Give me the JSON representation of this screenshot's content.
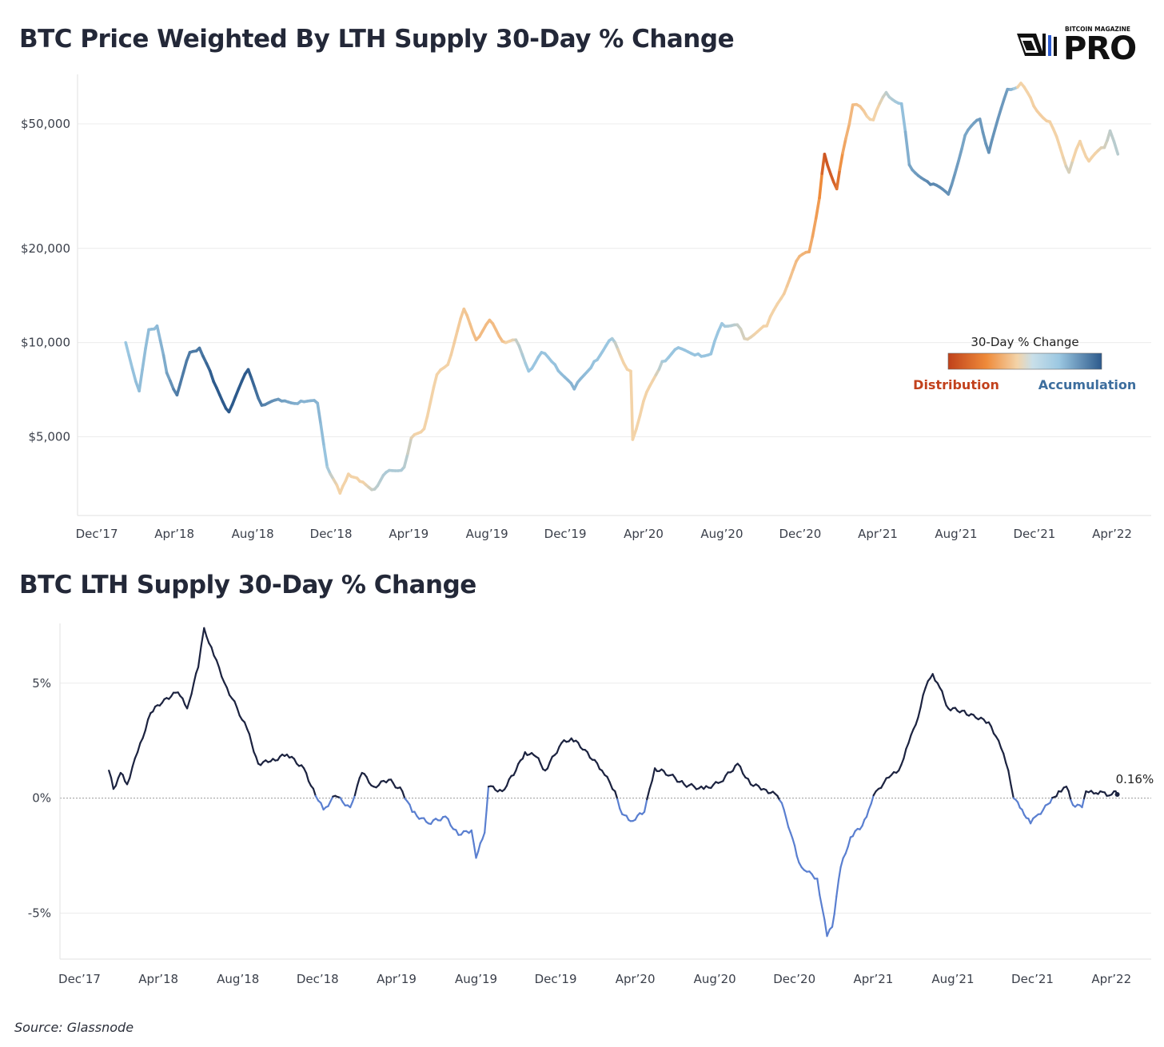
{
  "brand": {
    "top_line": "BITCOIN MAGAZINE",
    "main": "PRO"
  },
  "source": "Source: Glassnode",
  "colors": {
    "distribution_dark": "#c0411a",
    "distribution_mid": "#ef8b3a",
    "neutral_light": "#f3d3a8",
    "accumulation_light": "#9cc8e2",
    "accumulation_dark": "#2d5a8c",
    "lth_positive": "#1c2340",
    "lth_negative": "#5a7fd0",
    "title": "#232838"
  },
  "chart_data": [
    {
      "type": "line",
      "title": "BTC Price Weighted By LTH Supply 30-Day % Change",
      "xlabel": "",
      "ylabel": "",
      "y_scale": "log",
      "ylim": [
        2800,
        72000
      ],
      "y_ticks": [
        5000,
        10000,
        20000,
        50000
      ],
      "y_tick_labels": [
        "$5,000",
        "$10,000",
        "$20,000",
        "$50,000"
      ],
      "x_range": [
        "2017-11-01",
        "2022-06-01"
      ],
      "x_ticks": [
        "2017-12-01",
        "2018-04-01",
        "2018-08-01",
        "2018-12-01",
        "2019-04-01",
        "2019-08-01",
        "2019-12-01",
        "2020-04-01",
        "2020-08-01",
        "2020-12-01",
        "2021-04-01",
        "2021-08-01",
        "2021-12-01",
        "2022-04-01"
      ],
      "x_tick_labels": [
        "Dec’17",
        "Apr’18",
        "Aug’18",
        "Dec’18",
        "Apr’19",
        "Aug’19",
        "Dec’19",
        "Apr’20",
        "Aug’20",
        "Dec’20",
        "Apr’21",
        "Aug’21",
        "Dec’21",
        "Apr’22"
      ],
      "color_by": "lth_30d_change",
      "legend": {
        "title": "30-Day % Change",
        "left_label": "Distribution",
        "right_label": "Accumulation",
        "placement": "right-middle"
      },
      "grid": true,
      "points": [
        [
          "2018-01-15",
          10000,
          -1.0
        ],
        [
          "2018-02-05",
          7000,
          -1.5
        ],
        [
          "2018-02-20",
          11000,
          -1.5
        ],
        [
          "2018-03-05",
          11300,
          -1.5
        ],
        [
          "2018-03-20",
          8000,
          -2.5
        ],
        [
          "2018-04-05",
          6800,
          -4.5
        ],
        [
          "2018-04-25",
          9300,
          -4.5
        ],
        [
          "2018-05-10",
          9600,
          -4.5
        ],
        [
          "2018-06-01",
          7500,
          -6.0
        ],
        [
          "2018-06-25",
          6000,
          -6.5
        ],
        [
          "2018-07-25",
          8200,
          -6.0
        ],
        [
          "2018-08-15",
          6300,
          -4.5
        ],
        [
          "2018-09-15",
          6500,
          -3.0
        ],
        [
          "2018-10-15",
          6500,
          -2.0
        ],
        [
          "2018-11-10",
          6400,
          -2.0
        ],
        [
          "2018-11-25",
          4000,
          -1.0
        ],
        [
          "2018-12-15",
          3300,
          0.3
        ],
        [
          "2018-12-28",
          3800,
          0.3
        ],
        [
          "2019-01-15",
          3600,
          0.3
        ],
        [
          "2019-02-07",
          3400,
          -0.6
        ],
        [
          "2019-02-25",
          3850,
          -0.8
        ],
        [
          "2019-03-25",
          4000,
          -0.8
        ],
        [
          "2019-04-05",
          4950,
          -0.3
        ],
        [
          "2019-04-25",
          5300,
          0.9
        ],
        [
          "2019-05-15",
          7900,
          1.0
        ],
        [
          "2019-06-01",
          8500,
          1.0
        ],
        [
          "2019-06-26",
          12800,
          1.5
        ],
        [
          "2019-07-15",
          10200,
          2.0
        ],
        [
          "2019-08-05",
          11800,
          2.0
        ],
        [
          "2019-08-25",
          10100,
          2.0
        ],
        [
          "2019-09-15",
          10200,
          -0.5
        ],
        [
          "2019-10-05",
          8100,
          -1.0
        ],
        [
          "2019-10-25",
          9300,
          -1.2
        ],
        [
          "2019-11-15",
          8500,
          -1.2
        ],
        [
          "2019-12-15",
          7100,
          -2.0
        ],
        [
          "2020-01-15",
          8700,
          -1.2
        ],
        [
          "2020-02-12",
          10300,
          -1.0
        ],
        [
          "2020-03-01",
          8600,
          0.3
        ],
        [
          "2020-03-12",
          8100,
          0.3
        ],
        [
          "2020-03-15",
          4900,
          0.8
        ],
        [
          "2020-04-01",
          6500,
          1.0
        ],
        [
          "2020-04-30",
          8700,
          -0.8
        ],
        [
          "2020-05-20",
          9500,
          -1.2
        ],
        [
          "2020-06-25",
          9200,
          -1.2
        ],
        [
          "2020-07-15",
          9200,
          -1.2
        ],
        [
          "2020-08-01",
          11500,
          -1.0
        ],
        [
          "2020-08-25",
          11400,
          -0.6
        ],
        [
          "2020-09-05",
          10300,
          -0.3
        ],
        [
          "2020-10-10",
          11300,
          0.2
        ],
        [
          "2020-11-01",
          13800,
          1.0
        ],
        [
          "2020-11-25",
          18200,
          2.0
        ],
        [
          "2020-12-15",
          19500,
          2.5
        ],
        [
          "2020-12-31",
          29000,
          3.5
        ],
        [
          "2021-01-08",
          40000,
          5.5
        ],
        [
          "2021-01-27",
          31000,
          5.0
        ],
        [
          "2021-02-10",
          44800,
          2.5
        ],
        [
          "2021-02-21",
          57500,
          2.0
        ],
        [
          "2021-03-10",
          55000,
          1.5
        ],
        [
          "2021-03-25",
          51500,
          0.4
        ],
        [
          "2021-04-14",
          63000,
          -0.6
        ],
        [
          "2021-05-08",
          58000,
          -1.0
        ],
        [
          "2021-05-20",
          37000,
          -2.5
        ],
        [
          "2021-06-22",
          32000,
          -4.0
        ],
        [
          "2021-07-20",
          29800,
          -3.5
        ],
        [
          "2021-08-15",
          46000,
          -2.5
        ],
        [
          "2021-09-07",
          51800,
          -3.0
        ],
        [
          "2021-09-21",
          40500,
          -3.5
        ],
        [
          "2021-10-20",
          64500,
          -3.0
        ],
        [
          "2021-11-10",
          67500,
          0.4
        ],
        [
          "2021-11-30",
          57000,
          1.2
        ],
        [
          "2021-12-25",
          50800,
          1.2
        ],
        [
          "2022-01-10",
          42000,
          0.3
        ],
        [
          "2022-01-24",
          35000,
          -0.5
        ],
        [
          "2022-02-10",
          44000,
          0.6
        ],
        [
          "2022-02-24",
          38000,
          0.3
        ],
        [
          "2022-03-20",
          42000,
          -0.3
        ],
        [
          "2022-03-29",
          47500,
          -0.6
        ],
        [
          "2022-04-10",
          40000,
          -0.7
        ]
      ]
    },
    {
      "type": "line",
      "title": "BTC LTH Supply 30-Day % Change",
      "xlabel": "",
      "ylabel": "",
      "ylim": [
        -7,
        7.6
      ],
      "y_ticks": [
        -5,
        0,
        5
      ],
      "y_tick_labels": [
        "-5%",
        "0%",
        "5%"
      ],
      "x_range": [
        "2017-11-01",
        "2022-06-01"
      ],
      "x_ticks": [
        "2017-12-01",
        "2018-04-01",
        "2018-08-01",
        "2018-12-01",
        "2019-04-01",
        "2019-08-01",
        "2019-12-01",
        "2020-04-01",
        "2020-08-01",
        "2020-12-01",
        "2021-04-01",
        "2021-08-01",
        "2021-12-01",
        "2022-04-01"
      ],
      "x_tick_labels": [
        "Dec’17",
        "Apr’18",
        "Aug’18",
        "Dec’18",
        "Apr’19",
        "Aug’19",
        "Dec’19",
        "Apr’20",
        "Aug’20",
        "Dec’20",
        "Apr’21",
        "Aug’21",
        "Dec’21",
        "Apr’22"
      ],
      "grid": true,
      "zero_line": true,
      "last_value_label": "0.16%",
      "series": [
        {
          "points": [
            [
              "2018-01-15",
              1.2
            ],
            [
              "2018-01-22",
              0.4
            ],
            [
              "2018-02-02",
              1.1
            ],
            [
              "2018-02-12",
              0.6
            ],
            [
              "2018-02-28",
              2.0
            ],
            [
              "2018-03-20",
              3.7
            ],
            [
              "2018-04-10",
              4.3
            ],
            [
              "2018-05-01",
              4.6
            ],
            [
              "2018-05-15",
              3.9
            ],
            [
              "2018-06-01",
              5.7
            ],
            [
              "2018-06-10",
              7.4
            ],
            [
              "2018-06-25",
              6.2
            ],
            [
              "2018-07-15",
              4.8
            ],
            [
              "2018-08-15",
              3.0
            ],
            [
              "2018-09-01",
              1.5
            ],
            [
              "2018-09-20",
              1.6
            ],
            [
              "2018-10-15",
              1.9
            ],
            [
              "2018-11-10",
              1.3
            ],
            [
              "2018-11-28",
              0.1
            ],
            [
              "2018-12-10",
              -0.5
            ],
            [
              "2018-12-28",
              0.1
            ],
            [
              "2019-01-20",
              -0.4
            ],
            [
              "2019-02-07",
              1.1
            ],
            [
              "2019-02-25",
              0.5
            ],
            [
              "2019-03-20",
              0.8
            ],
            [
              "2019-04-10",
              0.3
            ],
            [
              "2019-04-25",
              -0.6
            ],
            [
              "2019-05-20",
              -1.1
            ],
            [
              "2019-06-15",
              -0.8
            ],
            [
              "2019-07-05",
              -1.6
            ],
            [
              "2019-07-25",
              -1.4
            ],
            [
              "2019-08-01",
              -2.6
            ],
            [
              "2019-08-14",
              -1.5
            ],
            [
              "2019-08-20",
              0.5
            ],
            [
              "2019-09-10",
              0.3
            ],
            [
              "2019-10-01",
              1.2
            ],
            [
              "2019-10-15",
              2.0
            ],
            [
              "2019-11-01",
              1.8
            ],
            [
              "2019-11-15",
              1.2
            ],
            [
              "2019-12-10",
              2.4
            ],
            [
              "2019-12-25",
              2.6
            ],
            [
              "2020-01-15",
              2.1
            ],
            [
              "2020-02-10",
              1.2
            ],
            [
              "2020-03-01",
              0.3
            ],
            [
              "2020-03-12",
              -0.7
            ],
            [
              "2020-03-25",
              -1.0
            ],
            [
              "2020-04-15",
              -0.6
            ],
            [
              "2020-05-01",
              1.3
            ],
            [
              "2020-05-25",
              1.0
            ],
            [
              "2020-06-15",
              0.6
            ],
            [
              "2020-07-15",
              0.4
            ],
            [
              "2020-08-10",
              0.7
            ],
            [
              "2020-09-05",
              1.5
            ],
            [
              "2020-09-25",
              0.6
            ],
            [
              "2020-10-15",
              0.4
            ],
            [
              "2020-11-05",
              0.1
            ],
            [
              "2020-11-15",
              -0.5
            ],
            [
              "2020-11-25",
              -1.5
            ],
            [
              "2020-12-08",
              -2.8
            ],
            [
              "2020-12-20",
              -3.2
            ],
            [
              "2021-01-05",
              -3.5
            ],
            [
              "2021-01-20",
              -6.0
            ],
            [
              "2021-01-28",
              -5.6
            ],
            [
              "2021-02-10",
              -3.0
            ],
            [
              "2021-02-25",
              -1.7
            ],
            [
              "2021-03-15",
              -1.2
            ],
            [
              "2021-03-25",
              -0.5
            ],
            [
              "2021-04-05",
              0.3
            ],
            [
              "2021-04-25",
              0.9
            ],
            [
              "2021-05-10",
              1.2
            ],
            [
              "2021-05-25",
              2.4
            ],
            [
              "2021-06-05",
              3.2
            ],
            [
              "2021-06-20",
              4.8
            ],
            [
              "2021-07-01",
              5.4
            ],
            [
              "2021-07-12",
              4.8
            ],
            [
              "2021-07-25",
              3.9
            ],
            [
              "2021-08-15",
              3.8
            ],
            [
              "2021-09-05",
              3.5
            ],
            [
              "2021-09-25",
              3.3
            ],
            [
              "2021-10-10",
              2.5
            ],
            [
              "2021-10-25",
              1.2
            ],
            [
              "2021-11-02",
              0.0
            ],
            [
              "2021-11-15",
              -0.5
            ],
            [
              "2021-11-28",
              -1.1
            ],
            [
              "2021-12-10",
              -0.7
            ],
            [
              "2021-12-28",
              -0.2
            ],
            [
              "2022-01-10",
              0.3
            ],
            [
              "2022-01-22",
              0.5
            ],
            [
              "2022-02-01",
              -0.3
            ],
            [
              "2022-02-15",
              -0.4
            ],
            [
              "2022-02-21",
              0.3
            ],
            [
              "2022-03-05",
              0.2
            ],
            [
              "2022-03-15",
              0.3
            ],
            [
              "2022-03-25",
              0.1
            ],
            [
              "2022-04-05",
              0.3
            ],
            [
              "2022-04-10",
              0.16
            ]
          ]
        }
      ]
    }
  ]
}
